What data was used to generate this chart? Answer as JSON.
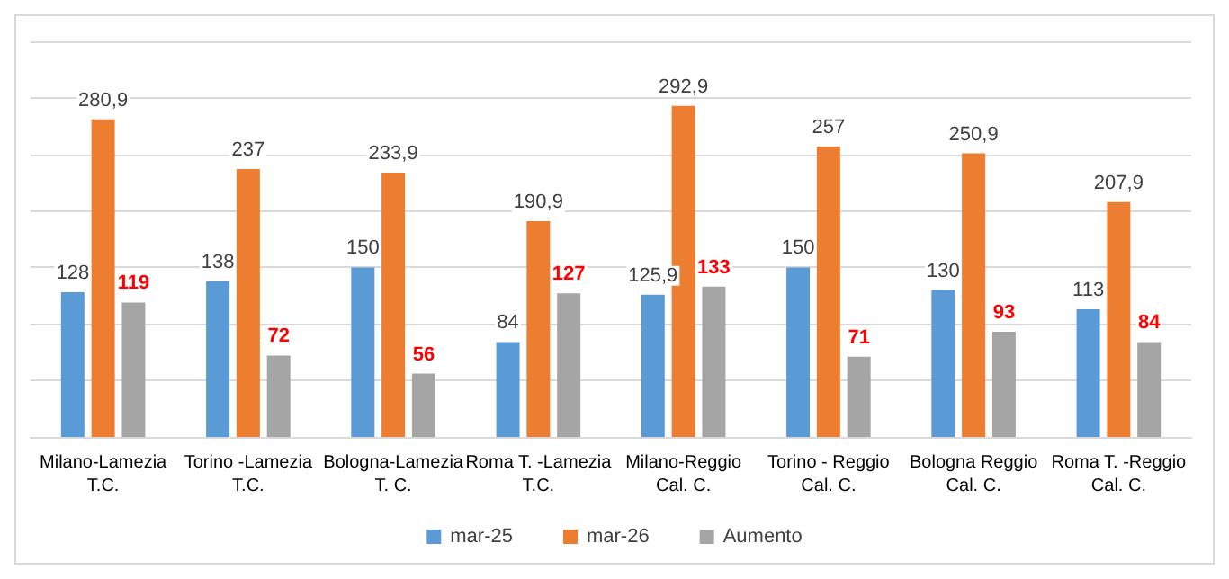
{
  "chart_data": {
    "type": "bar",
    "categories": [
      "Milano-Lamezia\nT.C.",
      "Torino -Lamezia\nT.C.",
      "Bologna-Lamezia\nT. C.",
      "Roma T. -Lamezia\nT.C.",
      "Milano-Reggio\nCal. C.",
      "Torino - Reggio\nCal. C.",
      "Bologna Reggio\nCal. C.",
      "Roma T. -Reggio\nCal. C."
    ],
    "series": [
      {
        "name": "mar-25",
        "color": "#5b9bd5",
        "values": [
          128,
          138,
          150,
          84,
          125.9,
          150,
          130,
          113
        ],
        "value_labels": [
          "128",
          "138",
          "150",
          "84",
          "125,9",
          "150",
          "130",
          "113"
        ]
      },
      {
        "name": "mar-26",
        "color": "#ed7d31",
        "values": [
          280.9,
          237,
          233.9,
          190.9,
          292.9,
          257,
          250.9,
          207.9
        ],
        "value_labels": [
          "280,9",
          "237",
          "233,9",
          "190,9",
          "292,9",
          "257",
          "250,9",
          "207,9"
        ]
      },
      {
        "name": "Aumento",
        "color": "#a5a5a5",
        "values": [
          119,
          72,
          56,
          127,
          133,
          71,
          93,
          84
        ],
        "value_labels": [
          "119",
          "72",
          "56",
          "127",
          "133",
          "71",
          "93",
          "84"
        ]
      }
    ],
    "ylim": [
      0,
      350
    ],
    "yticks": [
      0,
      50,
      100,
      150,
      200,
      250,
      300,
      350
    ],
    "tick_labels": "x",
    "grid": "y",
    "legend": "bottom"
  }
}
